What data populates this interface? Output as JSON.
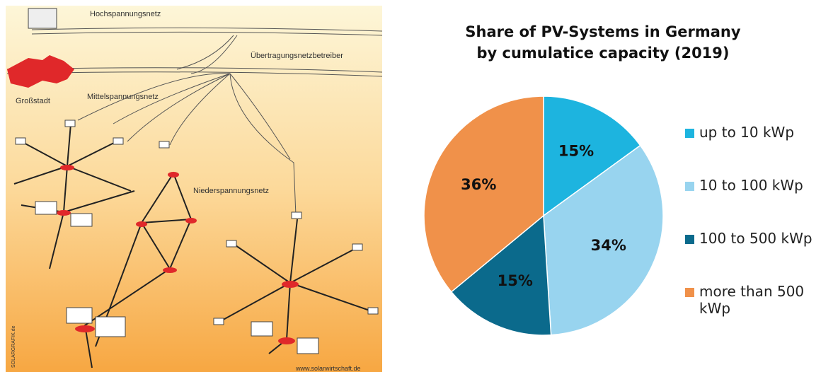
{
  "illustration": {
    "labels": [
      "Hochspannungsnetz",
      "Übertragungsnetzbetreiber",
      "Großstadt",
      "Mittelspannungsnetz",
      "Niederspannungsnetz",
      "SOLARGRAFIK.de",
      "www.solarwirtschaft.de"
    ]
  },
  "chart_data": {
    "type": "pie",
    "title": [
      "Share of PV-Systems in Germany",
      "by cumulatice capacity (2019)"
    ],
    "categories": [
      "up to 10 kWp",
      "10 to 100 kWp",
      "100 to 500 kWp",
      "more than 500 kWp"
    ],
    "values": [
      15,
      34,
      15,
      36
    ],
    "value_labels": [
      "15%",
      "34%",
      "15%",
      "36%"
    ],
    "colors": [
      "#1db4df",
      "#98d4ef",
      "#0b6a8c",
      "#f0914a"
    ],
    "legend": "right"
  }
}
